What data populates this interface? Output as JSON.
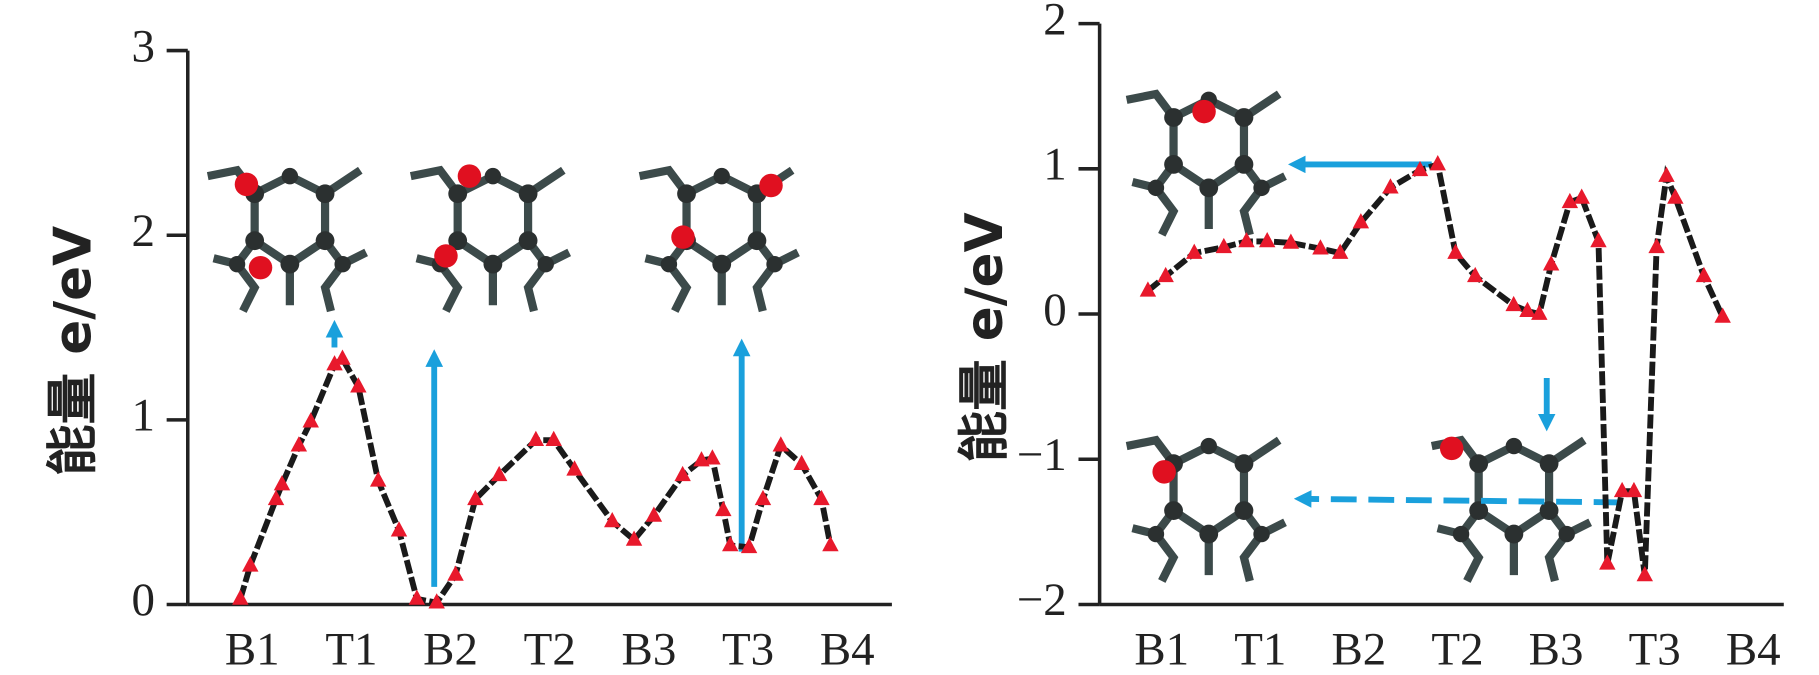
{
  "chart_data": [
    {
      "type": "line",
      "ylabel": "能量 e/eV",
      "xlim": [
        -0.65,
        6.45
      ],
      "ylim": [
        0,
        3
      ],
      "yticks": [
        0,
        1,
        2,
        3
      ],
      "xticks": [
        {
          "value": 0,
          "label": "B1"
        },
        {
          "value": 1,
          "label": "T1"
        },
        {
          "value": 2,
          "label": "B2"
        },
        {
          "value": 3,
          "label": "T2"
        },
        {
          "value": 4,
          "label": "B3"
        },
        {
          "value": 5,
          "label": "T3"
        },
        {
          "value": 6,
          "label": "B4"
        }
      ],
      "series": [
        {
          "color": "#e8192c",
          "line_color": "#1a1a1a",
          "x": [
            -0.12,
            -0.02,
            0.24,
            0.3,
            0.47,
            0.59,
            0.83,
            0.91,
            1.07,
            1.27,
            1.48,
            1.66,
            1.86,
            2.05,
            2.25,
            2.49,
            2.86,
            3.04,
            3.25,
            3.63,
            3.85,
            4.05,
            4.34,
            4.53,
            4.64,
            4.75,
            4.82,
            5.01,
            5.15,
            5.33,
            5.54,
            5.74,
            5.83
          ],
          "values": [
            0.03,
            0.21,
            0.57,
            0.65,
            0.86,
            0.99,
            1.3,
            1.33,
            1.18,
            0.67,
            0.4,
            0.03,
            0.01,
            0.16,
            0.57,
            0.7,
            0.89,
            0.89,
            0.73,
            0.45,
            0.35,
            0.48,
            0.7,
            0.78,
            0.79,
            0.51,
            0.32,
            0.31,
            0.57,
            0.86,
            0.76,
            0.57,
            0.32
          ]
        }
      ]
    },
    {
      "type": "line",
      "ylabel": "能量 e/eV",
      "xlim": [
        -0.63,
        6.31
      ],
      "ylim": [
        -2,
        2
      ],
      "yticks": [
        {
          "value": -2,
          "label": "−2"
        },
        {
          "value": -1,
          "label": "−1"
        },
        0,
        1,
        2
      ],
      "xticks": [
        {
          "value": 0,
          "label": "B1"
        },
        {
          "value": 1,
          "label": "T1"
        },
        {
          "value": 2,
          "label": "B2"
        },
        {
          "value": 3,
          "label": "T2"
        },
        {
          "value": 4,
          "label": "B3"
        },
        {
          "value": 5,
          "label": "T3"
        },
        {
          "value": 6,
          "label": "B4"
        }
      ],
      "series": [
        {
          "color": "#e8192c",
          "line_color": "#1a1a1a",
          "x": [
            -0.14,
            0.04,
            0.33,
            0.63,
            0.86,
            1.07,
            1.31,
            1.61,
            1.81,
            2.02,
            2.32,
            2.62,
            2.8,
            2.98,
            3.18,
            3.57,
            3.71,
            3.83,
            3.95,
            4.14,
            4.26,
            4.43,
            4.52,
            4.67,
            4.79,
            4.9,
            5.02,
            5.12,
            5.21,
            5.5,
            5.69
          ],
          "values": [
            0.16,
            0.26,
            0.42,
            0.46,
            0.5,
            0.5,
            0.49,
            0.45,
            0.42,
            0.63,
            0.87,
            0.99,
            1.03,
            0.42,
            0.26,
            0.06,
            0.02,
            0,
            0.34,
            0.77,
            0.8,
            0.5,
            -1.72,
            -1.22,
            -1.22,
            -1.8,
            0.46,
            0.95,
            0.8,
            0.26,
            -0.02
          ]
        }
      ]
    }
  ]
}
